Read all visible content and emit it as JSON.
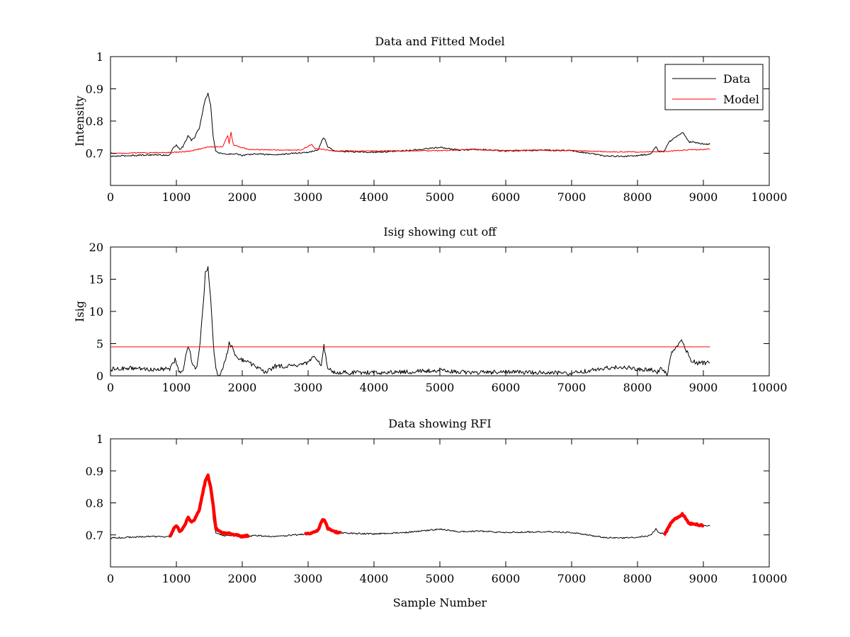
{
  "chart_data": [
    {
      "type": "line",
      "title": "Data and Fitted Model",
      "xlabel": "",
      "ylabel": "Intensity",
      "xlim": [
        0,
        10000
      ],
      "ylim": [
        0.6,
        1.0
      ],
      "xticks": [
        0,
        1000,
        2000,
        3000,
        4000,
        5000,
        6000,
        7000,
        8000,
        9000,
        10000
      ],
      "yticks": [
        0.7,
        0.8,
        0.9,
        1
      ],
      "ytick_labels": [
        "0.7",
        "0.8",
        "0.9",
        "1"
      ],
      "grid": false,
      "legend": "top-right",
      "series": [
        {
          "name": "Data",
          "color": "#000000",
          "x": [
            0,
            300,
            600,
            900,
            960,
            1000,
            1050,
            1100,
            1180,
            1230,
            1280,
            1350,
            1400,
            1440,
            1480,
            1520,
            1560,
            1600,
            1700,
            1800,
            1900,
            2000,
            2200,
            2500,
            2800,
            3000,
            3150,
            3220,
            3250,
            3300,
            3400,
            3600,
            4000,
            4500,
            5000,
            5300,
            5600,
            6000,
            6500,
            7000,
            7500,
            7800,
            8000,
            8200,
            8280,
            8320,
            8400,
            8480,
            8560,
            8640,
            8680,
            8720,
            8780,
            8850,
            8950,
            9100
          ],
          "y": [
            0.69,
            0.693,
            0.695,
            0.694,
            0.72,
            0.725,
            0.712,
            0.72,
            0.755,
            0.74,
            0.75,
            0.78,
            0.83,
            0.87,
            0.885,
            0.85,
            0.75,
            0.705,
            0.698,
            0.697,
            0.699,
            0.693,
            0.698,
            0.695,
            0.7,
            0.703,
            0.71,
            0.745,
            0.745,
            0.72,
            0.708,
            0.705,
            0.703,
            0.708,
            0.718,
            0.71,
            0.712,
            0.707,
            0.71,
            0.708,
            0.692,
            0.69,
            0.693,
            0.698,
            0.72,
            0.706,
            0.705,
            0.735,
            0.748,
            0.758,
            0.765,
            0.755,
            0.735,
            0.735,
            0.73,
            0.728
          ]
        },
        {
          "name": "Model",
          "color": "#ff0000",
          "x": [
            0,
            900,
            1200,
            1500,
            1700,
            1780,
            1800,
            1830,
            1860,
            1880,
            1950,
            2100,
            2500,
            2900,
            3050,
            3100,
            3200,
            3400,
            4000,
            5000,
            5500,
            6000,
            6500,
            7000,
            7500,
            8000,
            8400,
            8700,
            9100
          ],
          "y": [
            0.7,
            0.702,
            0.706,
            0.72,
            0.72,
            0.755,
            0.73,
            0.765,
            0.73,
            0.725,
            0.72,
            0.712,
            0.71,
            0.71,
            0.728,
            0.715,
            0.712,
            0.707,
            0.707,
            0.708,
            0.712,
            0.708,
            0.71,
            0.708,
            0.705,
            0.704,
            0.705,
            0.71,
            0.712
          ]
        }
      ]
    },
    {
      "type": "line",
      "title": "Isig showing cut off",
      "xlabel": "",
      "ylabel": "Isig",
      "xlim": [
        0,
        10000
      ],
      "ylim": [
        0,
        20
      ],
      "xticks": [
        0,
        1000,
        2000,
        3000,
        4000,
        5000,
        6000,
        7000,
        8000,
        9000,
        10000
      ],
      "yticks": [
        0,
        5,
        10,
        15,
        20
      ],
      "ytick_labels": [
        "0",
        "5",
        "10",
        "15",
        "20"
      ],
      "grid": false,
      "series": [
        {
          "color": "#000000",
          "x": [
            0,
            300,
            600,
            900,
            980,
            1050,
            1100,
            1180,
            1250,
            1300,
            1350,
            1400,
            1440,
            1480,
            1520,
            1560,
            1600,
            1650,
            1750,
            1800,
            1850,
            1900,
            2000,
            2200,
            2350,
            2500,
            2800,
            3000,
            3100,
            3200,
            3240,
            3300,
            3400,
            3600,
            4000,
            4500,
            5000,
            5300,
            5600,
            6000,
            6500,
            7000,
            7500,
            7800,
            8000,
            8200,
            8300,
            8350,
            8450,
            8520,
            8600,
            8680,
            8720,
            8800,
            8900,
            9100
          ],
          "y": [
            1.0,
            1.2,
            1.0,
            1.1,
            2.5,
            0.5,
            1.0,
            4.8,
            1.5,
            1.0,
            4.0,
            10.0,
            16.0,
            17.0,
            12.0,
            5.0,
            1.0,
            0.0,
            2.5,
            5.0,
            4.5,
            3.0,
            2.5,
            1.5,
            0.5,
            1.5,
            1.5,
            2.0,
            3.0,
            1.5,
            4.8,
            1.0,
            0.6,
            0.5,
            0.5,
            0.6,
            0.9,
            0.6,
            0.5,
            0.6,
            0.5,
            0.4,
            1.2,
            1.4,
            1.0,
            1.0,
            0.5,
            1.0,
            0.3,
            3.5,
            4.5,
            5.6,
            4.5,
            2.5,
            2.0,
            2.0
          ]
        },
        {
          "color": "#ff0000",
          "x": [
            0,
            9100
          ],
          "y": [
            4.5,
            4.5
          ]
        }
      ]
    },
    {
      "type": "line",
      "title": "Data showing RFI",
      "xlabel": "Sample Number",
      "ylabel": "",
      "xlim": [
        0,
        10000
      ],
      "ylim": [
        0.6,
        1.0
      ],
      "xticks": [
        0,
        1000,
        2000,
        3000,
        4000,
        5000,
        6000,
        7000,
        8000,
        9000,
        10000
      ],
      "yticks": [
        0.7,
        0.8,
        0.9,
        1
      ],
      "ytick_labels": [
        "0.7",
        "0.8",
        "0.9",
        "1"
      ],
      "grid": false,
      "series": [
        {
          "color": "#000000",
          "x": [
            0,
            300,
            600,
            900,
            960,
            1000,
            1050,
            1100,
            1180,
            1230,
            1280,
            1350,
            1400,
            1440,
            1480,
            1520,
            1560,
            1600,
            1700,
            1800,
            1900,
            2000,
            2200,
            2500,
            2800,
            3000,
            3150,
            3220,
            3250,
            3300,
            3400,
            3600,
            4000,
            4500,
            5000,
            5300,
            5600,
            6000,
            6500,
            7000,
            7500,
            7800,
            8000,
            8200,
            8280,
            8320,
            8400,
            8480,
            8560,
            8640,
            8680,
            8720,
            8780,
            8850,
            8950,
            9100
          ],
          "y": [
            0.69,
            0.693,
            0.695,
            0.694,
            0.72,
            0.725,
            0.712,
            0.72,
            0.755,
            0.74,
            0.75,
            0.78,
            0.83,
            0.87,
            0.885,
            0.85,
            0.75,
            0.705,
            0.698,
            0.697,
            0.699,
            0.693,
            0.698,
            0.695,
            0.7,
            0.703,
            0.71,
            0.745,
            0.745,
            0.72,
            0.708,
            0.705,
            0.703,
            0.708,
            0.718,
            0.71,
            0.712,
            0.707,
            0.71,
            0.708,
            0.692,
            0.69,
            0.693,
            0.698,
            0.72,
            0.706,
            0.705,
            0.735,
            0.748,
            0.758,
            0.765,
            0.755,
            0.735,
            0.735,
            0.73,
            0.728
          ]
        },
        {
          "color": "#ff0000",
          "x": [
            900,
            960,
            1000,
            1050,
            1100,
            1180,
            1230,
            1280,
            1350,
            1400,
            1440,
            1480,
            1520,
            1560,
            1600,
            1700,
            1800,
            1900,
            2000,
            2100
          ],
          "y": [
            0.694,
            0.72,
            0.73,
            0.712,
            0.72,
            0.755,
            0.74,
            0.75,
            0.78,
            0.83,
            0.87,
            0.885,
            0.85,
            0.79,
            0.72,
            0.705,
            0.705,
            0.7,
            0.695,
            0.698
          ]
        },
        {
          "color": "#ff0000",
          "x": [
            2950,
            3050,
            3150,
            3220,
            3250,
            3300,
            3400,
            3500
          ],
          "y": [
            0.703,
            0.705,
            0.715,
            0.748,
            0.745,
            0.72,
            0.71,
            0.706
          ]
        },
        {
          "color": "#ff0000",
          "x": [
            8400,
            8450,
            8500,
            8560,
            8640,
            8680,
            8720,
            8780,
            8850,
            8950,
            9000
          ],
          "y": [
            0.7,
            0.715,
            0.735,
            0.748,
            0.758,
            0.765,
            0.755,
            0.735,
            0.735,
            0.73,
            0.73
          ]
        }
      ]
    }
  ]
}
